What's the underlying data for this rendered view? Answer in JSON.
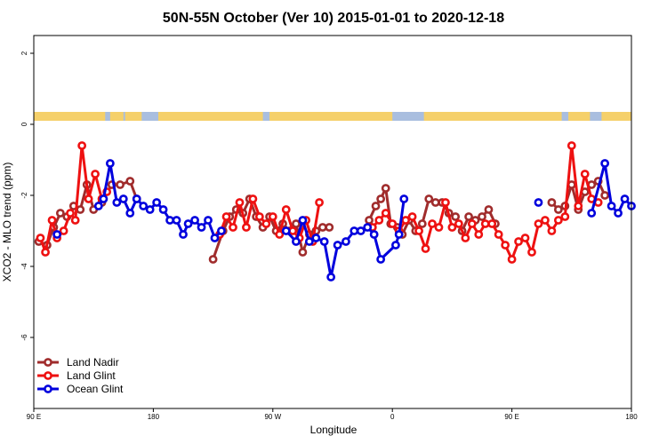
{
  "chart_data": {
    "type": "line",
    "title": "50N-55N October (Ver 10)   2015-01-01 to 2020-12-18",
    "xlabel": "Longitude",
    "ylabel": "XCO2 - MLO trend (ppm)",
    "xlim": [
      -90,
      270
    ],
    "ylim": [
      -8,
      2.5
    ],
    "x_ticks": [
      {
        "value": -90,
        "label": "90 E"
      },
      {
        "value": -18,
        "label": "180"
      },
      {
        "value": 54,
        "label": "90 W"
      },
      {
        "value": 126,
        "label": "0"
      },
      {
        "value": 198,
        "label": "90 E"
      },
      {
        "value": 270,
        "label": "180"
      }
    ],
    "y_ticks": [
      {
        "value": 2,
        "label": "2"
      },
      {
        "value": 0,
        "label": "0"
      },
      {
        "value": -2,
        "label": "-2"
      },
      {
        "value": -4,
        "label": "-4"
      },
      {
        "value": -6,
        "label": "-6"
      }
    ],
    "legend_position": "bottom-left",
    "land_mask": {
      "y_range": [
        0.1,
        0.35
      ],
      "land_color": "#f5d06a",
      "ocean_color": "#a9bedf",
      "land_spans": [
        [
          -90,
          -47
        ],
        [
          -44,
          -36
        ],
        [
          -35,
          -25
        ],
        [
          -15,
          48
        ],
        [
          52,
          126
        ],
        [
          145,
          228
        ],
        [
          232,
          245
        ],
        [
          252,
          270
        ]
      ]
    },
    "series": [
      {
        "name": "Land Nadir",
        "color": "#a02c2c",
        "x": [
          -87,
          -82,
          -78,
          -74,
          -70,
          -66,
          -62,
          -58,
          -54,
          -49,
          -43,
          -38,
          -32,
          -28,
          18,
          24,
          28,
          32,
          36,
          40,
          44,
          48,
          52,
          56,
          60,
          64,
          68,
          72,
          76,
          80,
          84,
          88,
          112,
          116,
          119,
          122,
          125,
          129,
          132,
          136,
          140,
          144,
          148,
          152,
          156,
          160,
          164,
          168,
          172,
          176,
          180,
          184,
          188,
          222,
          226,
          230,
          234,
          238,
          242,
          246,
          250,
          254
        ],
        "y": [
          -3.3,
          -3.4,
          -2.9,
          -2.5,
          -2.6,
          -2.3,
          -2.4,
          -1.7,
          -2.4,
          -2.2,
          -1.7,
          -1.7,
          -1.6,
          -2.1,
          -3.8,
          -3.0,
          -2.6,
          -2.4,
          -2.5,
          -2.1,
          -2.6,
          -2.9,
          -2.6,
          -3.0,
          -2.8,
          -3.0,
          -2.8,
          -3.6,
          -3.1,
          -3.0,
          -2.9,
          -2.9,
          -2.7,
          -2.3,
          -2.1,
          -1.8,
          -2.8,
          -2.9,
          -3.1,
          -2.7,
          -3.0,
          -2.8,
          -2.1,
          -2.2,
          -2.2,
          -2.5,
          -2.6,
          -3.0,
          -2.6,
          -2.7,
          -2.6,
          -2.4,
          -2.8,
          -2.2,
          -2.4,
          -2.3,
          -1.7,
          -2.4,
          -1.9,
          -1.7,
          -1.6,
          -2.0
        ]
      },
      {
        "name": "Land Glint",
        "color": "#ee1111",
        "x": [
          -86,
          -83,
          -79,
          -76,
          -72,
          -68,
          -65,
          -61,
          -57,
          -53,
          -49,
          -46,
          22,
          26,
          30,
          34,
          38,
          42,
          46,
          50,
          54,
          58,
          62,
          66,
          70,
          74,
          78,
          82,
          114,
          118,
          122,
          126,
          130,
          134,
          138,
          142,
          146,
          150,
          154,
          158,
          162,
          166,
          170,
          174,
          178,
          182,
          186,
          190,
          194,
          198,
          202,
          206,
          210,
          214,
          218,
          222,
          226,
          230,
          234,
          238,
          242,
          246,
          250
        ],
        "y": [
          -3.2,
          -3.6,
          -2.7,
          -3.2,
          -3.0,
          -2.5,
          -2.7,
          -0.6,
          -2.1,
          -1.4,
          -2.1,
          -1.9,
          -3.1,
          -2.6,
          -2.9,
          -2.2,
          -2.9,
          -2.1,
          -2.6,
          -2.8,
          -2.6,
          -3.1,
          -2.4,
          -3.0,
          -3.2,
          -2.7,
          -3.3,
          -2.2,
          -2.9,
          -2.7,
          -2.5,
          -2.8,
          -3.0,
          -2.7,
          -2.6,
          -3.0,
          -3.5,
          -2.8,
          -2.9,
          -2.2,
          -2.9,
          -2.8,
          -3.2,
          -2.8,
          -3.1,
          -2.8,
          -2.8,
          -3.1,
          -3.4,
          -3.8,
          -3.3,
          -3.2,
          -3.6,
          -2.8,
          -2.7,
          -3.0,
          -2.7,
          -2.6,
          -0.6,
          -2.3,
          -1.4,
          -2.1,
          -2.2
        ]
      },
      {
        "name": "Ocean Glint",
        "color": "#0000dd",
        "x": [
          -76,
          -51,
          -48,
          -44,
          -40,
          -36,
          -32,
          -28,
          -24,
          -20,
          -16,
          -12,
          -8,
          -4,
          0,
          3,
          7,
          11,
          15,
          19,
          23,
          62,
          68,
          72,
          76,
          80,
          85,
          89,
          93,
          98,
          103,
          107,
          111,
          115,
          119,
          128,
          130,
          133,
          214,
          246,
          254,
          258,
          262,
          266,
          270
        ],
        "y": [
          -3.1,
          -2.3,
          -2.1,
          -1.1,
          -2.2,
          -2.1,
          -2.5,
          -2.1,
          -2.3,
          -2.4,
          -2.2,
          -2.4,
          -2.7,
          -2.7,
          -3.1,
          -2.8,
          -2.7,
          -2.9,
          -2.7,
          -3.2,
          -3.0,
          -3.0,
          -3.3,
          -2.7,
          -3.3,
          -3.2,
          -3.3,
          -4.3,
          -3.4,
          -3.3,
          -3.0,
          -3.0,
          -2.9,
          -3.1,
          -3.8,
          -3.4,
          -3.1,
          -2.1,
          -2.2,
          -2.5,
          -1.1,
          -2.3,
          -2.5,
          -2.1,
          -2.3
        ]
      }
    ]
  }
}
